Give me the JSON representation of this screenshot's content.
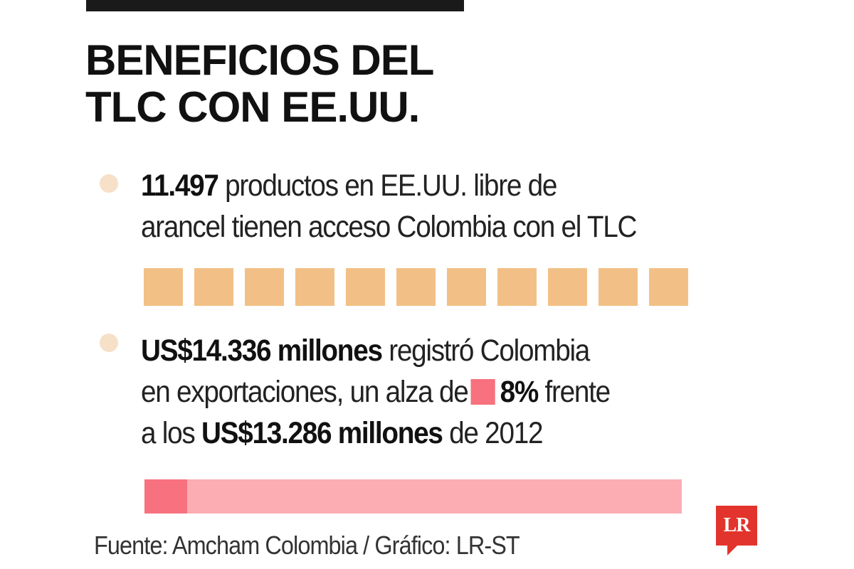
{
  "title": {
    "line1": "BENEFICIOS DEL",
    "line2": "TLC CON EE.UU."
  },
  "item1": {
    "bold": "11.497",
    "text_line1_rest": " productos en EE.UU. libre de",
    "text_line2": "arancel tienen acceso Colombia con el TLC",
    "squares_count": 11
  },
  "item2": {
    "bold1": "US$14.336 millones",
    "text1": " registró Colombia",
    "text2": "en exportaciones, un alza de",
    "bold_pct": "8%",
    "text3": " frente",
    "text4": "a los ",
    "bold2": "US$13.286 millones",
    "text5": " de 2012",
    "bar_highlight_fraction": 0.08
  },
  "source": "Fuente: Amcham Colombia / Gráfico: LR-ST",
  "logo": "LR",
  "colors": {
    "bullet": "#f6e0c8",
    "squares": "#f2c086",
    "pink_strong": "#f7717e",
    "pink_light": "#fbadb3",
    "logo_red": "#e2342c"
  }
}
